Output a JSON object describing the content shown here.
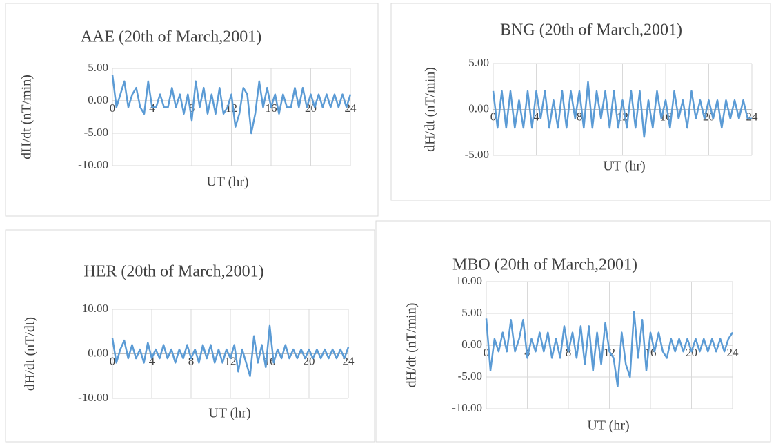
{
  "chart_data": [
    {
      "type": "line",
      "title": "AAE (20th of March,2001)",
      "x_label": "UT (hr)",
      "y_label": "dH/dt (nT/min)",
      "color": "#5b9bd5",
      "grid": true,
      "x": [
        0,
        0.4,
        0.8,
        1.2,
        1.6,
        2,
        2.4,
        2.8,
        3.2,
        3.6,
        4,
        4.4,
        4.8,
        5.2,
        5.6,
        6,
        6.4,
        6.8,
        7.2,
        7.6,
        8,
        8.4,
        8.8,
        9.2,
        9.6,
        10,
        10.4,
        10.8,
        11.2,
        11.6,
        12,
        12.4,
        12.8,
        13.2,
        13.6,
        14,
        14.4,
        14.8,
        15.2,
        15.6,
        16,
        16.4,
        16.8,
        17.2,
        17.6,
        18,
        18.4,
        18.8,
        19.2,
        19.6,
        20,
        20.4,
        20.8,
        21.2,
        21.6,
        22,
        22.4,
        22.8,
        23.2,
        23.6,
        24
      ],
      "values": [
        4,
        -1,
        1,
        3,
        -1,
        1,
        2,
        -1,
        -2,
        3,
        -1,
        -1,
        1,
        -1,
        -1,
        2,
        -1,
        1,
        -2,
        1,
        -3,
        3,
        -1,
        2,
        -2,
        1,
        -2,
        2,
        -2,
        -1,
        1,
        -4,
        -2,
        2,
        1,
        -5,
        -2,
        3,
        -1,
        2,
        -1,
        1,
        -2,
        1,
        -1,
        -1,
        2,
        -1,
        2,
        -1,
        1,
        -1,
        1,
        -1,
        1,
        -1,
        1,
        -1,
        1,
        -1,
        1
      ],
      "xlim": [
        0,
        24
      ],
      "xticks": [
        0,
        4,
        8,
        12,
        16,
        20,
        24
      ],
      "ylim": [
        -10,
        5
      ],
      "yticks": [
        {
          "value": 5,
          "label": "5.00"
        },
        {
          "value": 0,
          "label": "0.00"
        },
        {
          "value": -5,
          "label": "-5.00"
        },
        {
          "value": -10,
          "label": "-10.00"
        }
      ]
    },
    {
      "type": "line",
      "title": "BNG (20th of March,2001)",
      "x_label": "UT (hr)",
      "y_label": "dH/dt (nT/min)",
      "color": "#5b9bd5",
      "grid": true,
      "x": [
        0,
        0.4,
        0.8,
        1.2,
        1.6,
        2,
        2.4,
        2.8,
        3.2,
        3.6,
        4,
        4.4,
        4.8,
        5.2,
        5.6,
        6,
        6.4,
        6.8,
        7.2,
        7.6,
        8,
        8.4,
        8.8,
        9.2,
        9.6,
        10,
        10.4,
        10.8,
        11.2,
        11.6,
        12,
        12.4,
        12.8,
        13.2,
        13.6,
        14,
        14.4,
        14.8,
        15.2,
        15.6,
        16,
        16.4,
        16.8,
        17.2,
        17.6,
        18,
        18.4,
        18.8,
        19.2,
        19.6,
        20,
        20.4,
        20.8,
        21.2,
        21.6,
        22,
        22.4,
        22.8,
        23.2,
        23.6,
        24
      ],
      "values": [
        2,
        -2,
        2,
        -2,
        2,
        -2,
        1,
        -2,
        2,
        -2,
        2,
        -1,
        2,
        -2,
        1,
        -2,
        2,
        -2,
        2,
        -1,
        2,
        -2,
        3,
        -2,
        2,
        -1,
        2,
        -2,
        2,
        -2,
        1,
        -2,
        2,
        -2,
        2,
        -3,
        1,
        -2,
        2,
        -1,
        1,
        -2,
        2,
        -1,
        1,
        -2,
        2,
        -1,
        1,
        -1,
        1,
        -1,
        1,
        -2,
        1,
        -1,
        1,
        -1,
        1,
        -1,
        -1
      ],
      "xlim": [
        0,
        24
      ],
      "xticks": [
        0,
        4,
        8,
        12,
        16,
        20,
        24
      ],
      "ylim": [
        -5,
        5
      ],
      "yticks": [
        {
          "value": 5,
          "label": "5.00"
        },
        {
          "value": 0,
          "label": "0.00"
        },
        {
          "value": -5,
          "label": "-5.00"
        }
      ]
    },
    {
      "type": "line",
      "title": "HER (20th of March,2001)",
      "x_label": "UT (hr)",
      "y_label": "dH/dt (nT/dt)",
      "color": "#5b9bd5",
      "grid": true,
      "x": [
        0,
        0.4,
        0.8,
        1.2,
        1.6,
        2,
        2.4,
        2.8,
        3.2,
        3.6,
        4,
        4.4,
        4.8,
        5.2,
        5.6,
        6,
        6.4,
        6.8,
        7.2,
        7.6,
        8,
        8.4,
        8.8,
        9.2,
        9.6,
        10,
        10.4,
        10.8,
        11.2,
        11.6,
        12,
        12.4,
        12.8,
        13.2,
        13.6,
        14,
        14.4,
        14.8,
        15.2,
        15.6,
        16,
        16.4,
        16.8,
        17.2,
        17.6,
        18,
        18.4,
        18.8,
        19.2,
        19.6,
        20,
        20.4,
        20.8,
        21.2,
        21.6,
        22,
        22.4,
        22.8,
        23.2,
        23.6,
        24
      ],
      "values": [
        3.5,
        -2,
        1,
        3,
        -1,
        2,
        -1,
        1,
        -2,
        2.5,
        -1,
        1,
        -1,
        2,
        -1,
        1,
        -2,
        1,
        -1,
        2,
        -1,
        1,
        -2,
        2,
        -1,
        2,
        -2,
        1,
        -2,
        1,
        -1,
        2,
        -4,
        1,
        -2,
        -5,
        4,
        -2,
        2,
        -3,
        6.3,
        -2,
        1,
        -1,
        2,
        -1,
        1,
        -1,
        1,
        -1,
        1,
        -1,
        1,
        -1,
        1,
        -1,
        1,
        -1,
        1,
        -1,
        1.5
      ],
      "xlim": [
        0,
        24
      ],
      "xticks": [
        0,
        4,
        8,
        12,
        16,
        20,
        24
      ],
      "ylim": [
        -10,
        10
      ],
      "yticks": [
        {
          "value": 10,
          "label": "10.00"
        },
        {
          "value": 0,
          "label": "0.00"
        },
        {
          "value": -10,
          "label": "-10.00"
        }
      ]
    },
    {
      "type": "line",
      "title": "MBO (20th of March,2001)",
      "x_label": "UT (hr)",
      "y_label": "dH/dt (nT/min)",
      "color": "#5b9bd5",
      "grid": true,
      "x": [
        0,
        0.4,
        0.8,
        1.2,
        1.6,
        2,
        2.4,
        2.8,
        3.2,
        3.6,
        4,
        4.4,
        4.8,
        5.2,
        5.6,
        6,
        6.4,
        6.8,
        7.2,
        7.6,
        8,
        8.4,
        8.8,
        9.2,
        9.6,
        10,
        10.4,
        10.8,
        11.2,
        11.6,
        12,
        12.4,
        12.8,
        13.2,
        13.6,
        14,
        14.4,
        14.8,
        15.2,
        15.6,
        16,
        16.4,
        16.8,
        17.2,
        17.6,
        18,
        18.4,
        18.8,
        19.2,
        19.6,
        20,
        20.4,
        20.8,
        21.2,
        21.6,
        22,
        22.4,
        22.8,
        23.2,
        23.6,
        24
      ],
      "values": [
        4.2,
        -4,
        1,
        -1,
        2,
        -1,
        4,
        -1,
        1,
        4,
        -2,
        1,
        -1,
        2,
        -1,
        2,
        -2,
        1,
        -2,
        3,
        -1,
        2,
        -2,
        3,
        -3,
        3,
        -4,
        2,
        -3,
        3.5,
        -1,
        -2,
        -6.5,
        2,
        -3,
        -5,
        5.3,
        -2,
        4,
        -4,
        2,
        -1,
        2,
        -1,
        -2,
        1,
        -1,
        1,
        -1,
        1,
        -1,
        1,
        -1,
        1,
        -1,
        1,
        -1,
        1,
        -1,
        1,
        2
      ],
      "xlim": [
        0,
        24
      ],
      "xticks": [
        0,
        4,
        8,
        12,
        16,
        20,
        24
      ],
      "ylim": [
        -10,
        10
      ],
      "yticks": [
        {
          "value": 10,
          "label": "10.00"
        },
        {
          "value": 5,
          "label": "5.00"
        },
        {
          "value": 0,
          "label": "0.00"
        },
        {
          "value": -5,
          "label": "-5.00"
        },
        {
          "value": -10,
          "label": "-10.00"
        }
      ]
    }
  ]
}
